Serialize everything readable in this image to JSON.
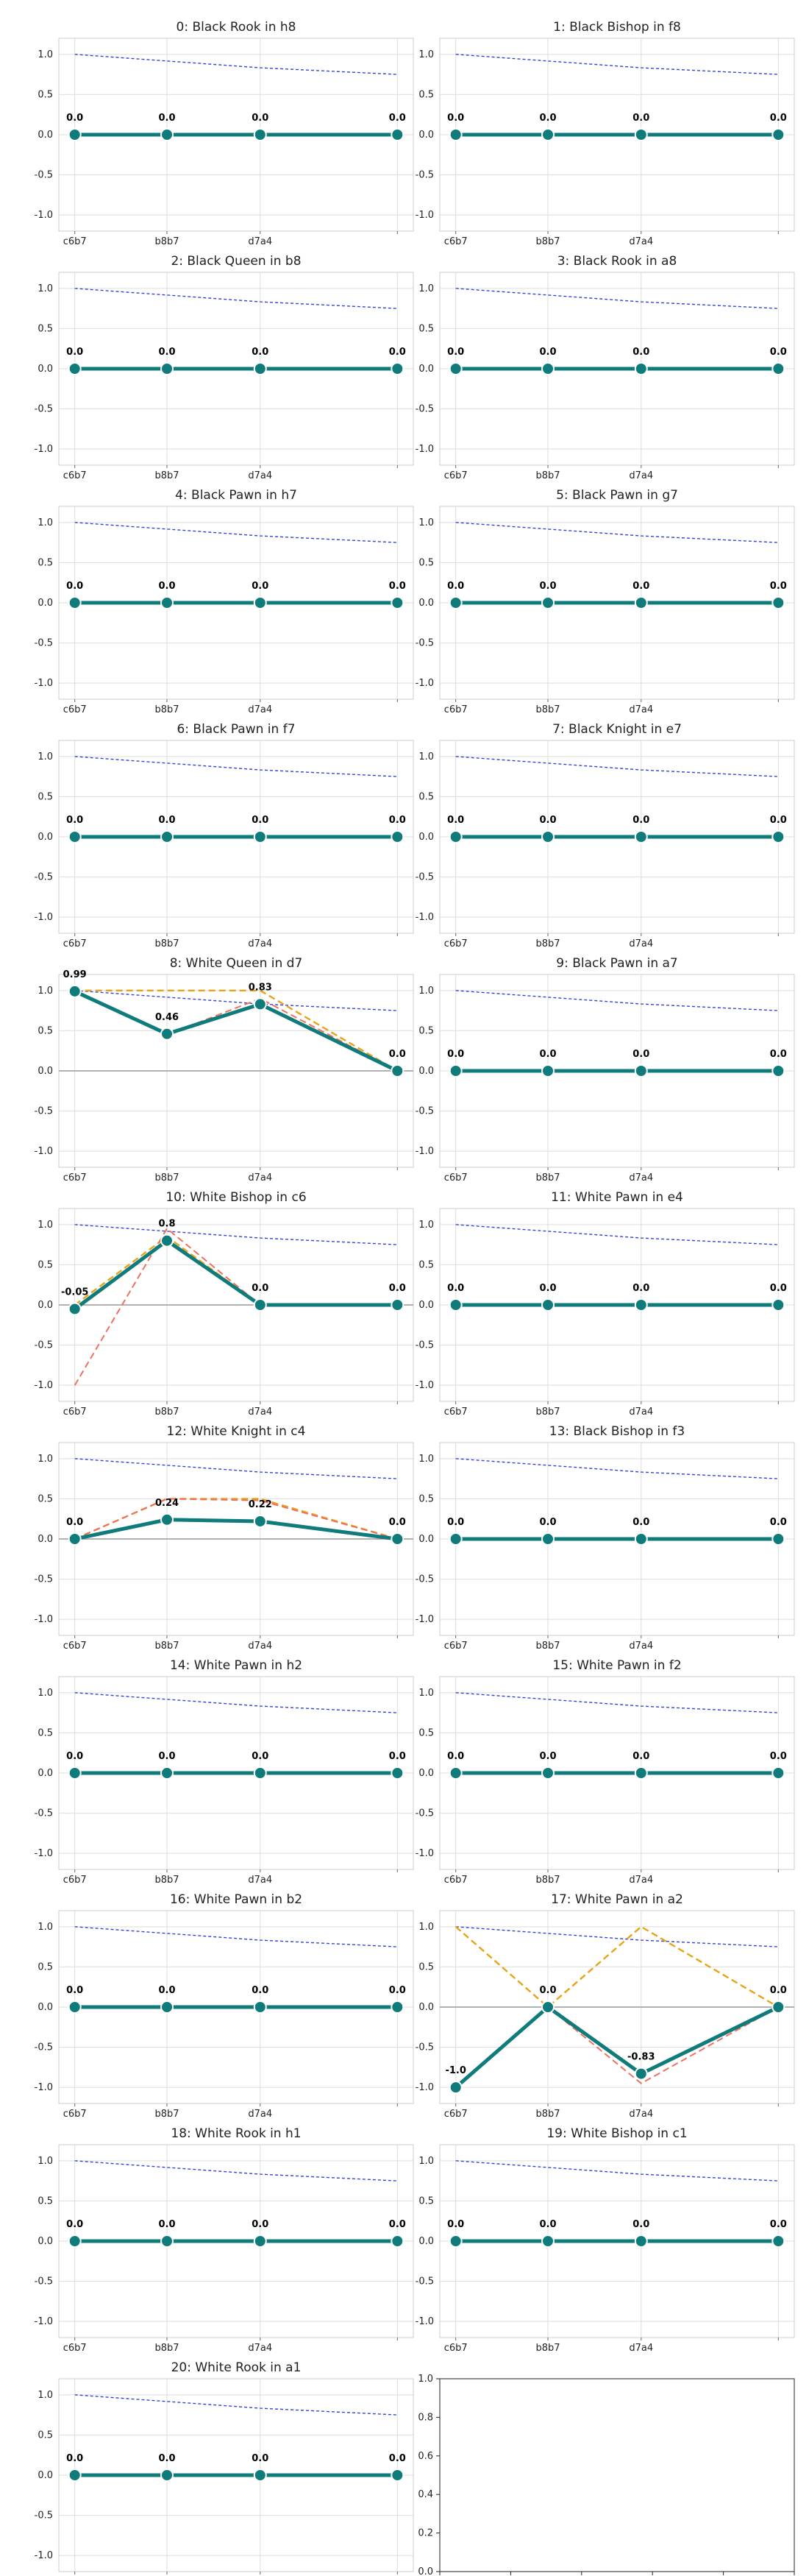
{
  "chart_data": [
    {
      "type": "line",
      "title": "0: Black Rook in h8",
      "categories": [
        "c6b7",
        "b8b7",
        "d7a4",
        ""
      ],
      "ylim": [
        -1.2,
        1.2
      ],
      "yticks": [
        "1.0",
        "0.5",
        "0.0",
        "-0.5",
        "-1.0"
      ],
      "grid": true,
      "series": [
        {
          "role": "trend",
          "values": [
            1.0,
            0.917,
            0.833,
            0.75
          ]
        },
        {
          "role": "main",
          "values": [
            0,
            0,
            0,
            0
          ],
          "labels": [
            "0.0",
            "0.0",
            "0.0",
            "0.0"
          ]
        }
      ]
    },
    {
      "type": "line",
      "title": "1: Black Bishop in f8",
      "categories": [
        "c6b7",
        "b8b7",
        "d7a4",
        ""
      ],
      "ylim": [
        -1.2,
        1.2
      ],
      "yticks": [
        "1.0",
        "0.5",
        "0.0",
        "-0.5",
        "-1.0"
      ],
      "grid": true,
      "series": [
        {
          "role": "trend",
          "values": [
            1.0,
            0.917,
            0.833,
            0.75
          ]
        },
        {
          "role": "main",
          "values": [
            0,
            0,
            0,
            0
          ],
          "labels": [
            "0.0",
            "0.0",
            "0.0",
            "0.0"
          ]
        }
      ]
    },
    {
      "type": "line",
      "title": "2: Black Queen in b8",
      "categories": [
        "c6b7",
        "b8b7",
        "d7a4",
        ""
      ],
      "ylim": [
        -1.2,
        1.2
      ],
      "yticks": [
        "1.0",
        "0.5",
        "0.0",
        "-0.5",
        "-1.0"
      ],
      "grid": true,
      "series": [
        {
          "role": "trend",
          "values": [
            1.0,
            0.917,
            0.833,
            0.75
          ]
        },
        {
          "role": "main",
          "values": [
            0,
            0,
            0,
            0
          ],
          "labels": [
            "0.0",
            "0.0",
            "0.0",
            "0.0"
          ]
        }
      ]
    },
    {
      "type": "line",
      "title": "3: Black Rook in a8",
      "categories": [
        "c6b7",
        "b8b7",
        "d7a4",
        ""
      ],
      "ylim": [
        -1.2,
        1.2
      ],
      "yticks": [
        "1.0",
        "0.5",
        "0.0",
        "-0.5",
        "-1.0"
      ],
      "grid": true,
      "series": [
        {
          "role": "trend",
          "values": [
            1.0,
            0.917,
            0.833,
            0.75
          ]
        },
        {
          "role": "main",
          "values": [
            0,
            0,
            0,
            0
          ],
          "labels": [
            "0.0",
            "0.0",
            "0.0",
            "0.0"
          ]
        }
      ]
    },
    {
      "type": "line",
      "title": "4: Black Pawn in h7",
      "categories": [
        "c6b7",
        "b8b7",
        "d7a4",
        ""
      ],
      "ylim": [
        -1.2,
        1.2
      ],
      "yticks": [
        "1.0",
        "0.5",
        "0.0",
        "-0.5",
        "-1.0"
      ],
      "grid": true,
      "series": [
        {
          "role": "trend",
          "values": [
            1.0,
            0.917,
            0.833,
            0.75
          ]
        },
        {
          "role": "main",
          "values": [
            0,
            0,
            0,
            0
          ],
          "labels": [
            "0.0",
            "0.0",
            "0.0",
            "0.0"
          ]
        }
      ]
    },
    {
      "type": "line",
      "title": "5: Black Pawn in g7",
      "categories": [
        "c6b7",
        "b8b7",
        "d7a4",
        ""
      ],
      "ylim": [
        -1.2,
        1.2
      ],
      "yticks": [
        "1.0",
        "0.5",
        "0.0",
        "-0.5",
        "-1.0"
      ],
      "grid": true,
      "series": [
        {
          "role": "trend",
          "values": [
            1.0,
            0.917,
            0.833,
            0.75
          ]
        },
        {
          "role": "main",
          "values": [
            0,
            0,
            0,
            0
          ],
          "labels": [
            "0.0",
            "0.0",
            "0.0",
            "0.0"
          ]
        }
      ]
    },
    {
      "type": "line",
      "title": "6: Black Pawn in f7",
      "categories": [
        "c6b7",
        "b8b7",
        "d7a4",
        ""
      ],
      "ylim": [
        -1.2,
        1.2
      ],
      "yticks": [
        "1.0",
        "0.5",
        "0.0",
        "-0.5",
        "-1.0"
      ],
      "grid": true,
      "series": [
        {
          "role": "trend",
          "values": [
            1.0,
            0.917,
            0.833,
            0.75
          ]
        },
        {
          "role": "main",
          "values": [
            0,
            0,
            0,
            0
          ],
          "labels": [
            "0.0",
            "0.0",
            "0.0",
            "0.0"
          ]
        }
      ]
    },
    {
      "type": "line",
      "title": "7: Black Knight in e7",
      "categories": [
        "c6b7",
        "b8b7",
        "d7a4",
        ""
      ],
      "ylim": [
        -1.2,
        1.2
      ],
      "yticks": [
        "1.0",
        "0.5",
        "0.0",
        "-0.5",
        "-1.0"
      ],
      "grid": true,
      "series": [
        {
          "role": "trend",
          "values": [
            1.0,
            0.917,
            0.833,
            0.75
          ]
        },
        {
          "role": "main",
          "values": [
            0,
            0,
            0,
            0
          ],
          "labels": [
            "0.0",
            "0.0",
            "0.0",
            "0.0"
          ]
        }
      ]
    },
    {
      "type": "line",
      "title": "8: White Queen in d7",
      "categories": [
        "c6b7",
        "b8b7",
        "d7a4",
        ""
      ],
      "ylim": [
        -1.2,
        1.2
      ],
      "yticks": [
        "1.0",
        "0.5",
        "0.0",
        "-0.5",
        "-1.0"
      ],
      "grid": true,
      "zero_line": true,
      "series": [
        {
          "role": "trend",
          "values": [
            1.0,
            0.917,
            0.833,
            0.75
          ]
        },
        {
          "role": "orange",
          "values": [
            1.0,
            1.0,
            1.0,
            0
          ]
        },
        {
          "role": "red",
          "values": [
            1.0,
            0.45,
            0.9,
            0
          ]
        },
        {
          "role": "main",
          "values": [
            0.99,
            0.46,
            0.83,
            0.0
          ],
          "labels": [
            "0.99",
            "0.46",
            "0.83",
            "0.0"
          ]
        }
      ]
    },
    {
      "type": "line",
      "title": "9: Black Pawn in a7",
      "categories": [
        "c6b7",
        "b8b7",
        "d7a4",
        ""
      ],
      "ylim": [
        -1.2,
        1.2
      ],
      "yticks": [
        "1.0",
        "0.5",
        "0.0",
        "-0.5",
        "-1.0"
      ],
      "grid": true,
      "series": [
        {
          "role": "trend",
          "values": [
            1.0,
            0.917,
            0.833,
            0.75
          ]
        },
        {
          "role": "main",
          "values": [
            0,
            0,
            0,
            0
          ],
          "labels": [
            "0.0",
            "0.0",
            "0.0",
            "0.0"
          ]
        }
      ]
    },
    {
      "type": "line",
      "title": "10: White Bishop in c6",
      "categories": [
        "c6b7",
        "b8b7",
        "d7a4",
        ""
      ],
      "ylim": [
        -1.2,
        1.2
      ],
      "yticks": [
        "1.0",
        "0.5",
        "0.0",
        "-0.5",
        "-1.0"
      ],
      "grid": true,
      "zero_line": true,
      "series": [
        {
          "role": "trend",
          "values": [
            1.0,
            0.917,
            0.833,
            0.75
          ]
        },
        {
          "role": "orange",
          "values": [
            0,
            0.85,
            0,
            0
          ]
        },
        {
          "role": "red",
          "values": [
            -1.0,
            0.95,
            0,
            0
          ]
        },
        {
          "role": "main",
          "values": [
            -0.05,
            0.8,
            0.0,
            0.0
          ],
          "labels": [
            "-0.05",
            "0.8",
            "0.0",
            "0.0"
          ]
        }
      ]
    },
    {
      "type": "line",
      "title": "11: White Pawn in e4",
      "categories": [
        "c6b7",
        "b8b7",
        "d7a4",
        ""
      ],
      "ylim": [
        -1.2,
        1.2
      ],
      "yticks": [
        "1.0",
        "0.5",
        "0.0",
        "-0.5",
        "-1.0"
      ],
      "grid": true,
      "series": [
        {
          "role": "trend",
          "values": [
            1.0,
            0.917,
            0.833,
            0.75
          ]
        },
        {
          "role": "main",
          "values": [
            0,
            0,
            0,
            0
          ],
          "labels": [
            "0.0",
            "0.0",
            "0.0",
            "0.0"
          ]
        }
      ]
    },
    {
      "type": "line",
      "title": "12: White Knight in c4",
      "categories": [
        "c6b7",
        "b8b7",
        "d7a4",
        ""
      ],
      "ylim": [
        -1.2,
        1.2
      ],
      "yticks": [
        "1.0",
        "0.5",
        "0.0",
        "-0.5",
        "-1.0"
      ],
      "grid": true,
      "zero_line": true,
      "series": [
        {
          "role": "trend",
          "values": [
            1.0,
            0.917,
            0.833,
            0.75
          ]
        },
        {
          "role": "orange",
          "values": [
            0,
            0.5,
            0.5,
            0
          ]
        },
        {
          "role": "red",
          "values": [
            0,
            0.5,
            0.48,
            0
          ]
        },
        {
          "role": "main",
          "values": [
            0.0,
            0.24,
            0.22,
            0.0
          ],
          "labels": [
            "0.0",
            "0.24",
            "0.22",
            "0.0"
          ]
        }
      ]
    },
    {
      "type": "line",
      "title": "13: Black Bishop in f3",
      "categories": [
        "c6b7",
        "b8b7",
        "d7a4",
        ""
      ],
      "ylim": [
        -1.2,
        1.2
      ],
      "yticks": [
        "1.0",
        "0.5",
        "0.0",
        "-0.5",
        "-1.0"
      ],
      "grid": true,
      "series": [
        {
          "role": "trend",
          "values": [
            1.0,
            0.917,
            0.833,
            0.75
          ]
        },
        {
          "role": "main",
          "values": [
            0,
            0,
            0,
            0
          ],
          "labels": [
            "0.0",
            "0.0",
            "0.0",
            "0.0"
          ]
        }
      ]
    },
    {
      "type": "line",
      "title": "14: White Pawn in h2",
      "categories": [
        "c6b7",
        "b8b7",
        "d7a4",
        ""
      ],
      "ylim": [
        -1.2,
        1.2
      ],
      "yticks": [
        "1.0",
        "0.5",
        "0.0",
        "-0.5",
        "-1.0"
      ],
      "grid": true,
      "series": [
        {
          "role": "trend",
          "values": [
            1.0,
            0.917,
            0.833,
            0.75
          ]
        },
        {
          "role": "main",
          "values": [
            0,
            0,
            0,
            0
          ],
          "labels": [
            "0.0",
            "0.0",
            "0.0",
            "0.0"
          ]
        }
      ]
    },
    {
      "type": "line",
      "title": "15: White Pawn in f2",
      "categories": [
        "c6b7",
        "b8b7",
        "d7a4",
        ""
      ],
      "ylim": [
        -1.2,
        1.2
      ],
      "yticks": [
        "1.0",
        "0.5",
        "0.0",
        "-0.5",
        "-1.0"
      ],
      "grid": true,
      "series": [
        {
          "role": "trend",
          "values": [
            1.0,
            0.917,
            0.833,
            0.75
          ]
        },
        {
          "role": "main",
          "values": [
            0,
            0,
            0,
            0
          ],
          "labels": [
            "0.0",
            "0.0",
            "0.0",
            "0.0"
          ]
        }
      ]
    },
    {
      "type": "line",
      "title": "16: White Pawn in b2",
      "categories": [
        "c6b7",
        "b8b7",
        "d7a4",
        ""
      ],
      "ylim": [
        -1.2,
        1.2
      ],
      "yticks": [
        "1.0",
        "0.5",
        "0.0",
        "-0.5",
        "-1.0"
      ],
      "grid": true,
      "series": [
        {
          "role": "trend",
          "values": [
            1.0,
            0.917,
            0.833,
            0.75
          ]
        },
        {
          "role": "main",
          "values": [
            0,
            0,
            0,
            0
          ],
          "labels": [
            "0.0",
            "0.0",
            "0.0",
            "0.0"
          ]
        }
      ]
    },
    {
      "type": "line",
      "title": "17: White Pawn in a2",
      "categories": [
        "c6b7",
        "b8b7",
        "d7a4",
        ""
      ],
      "ylim": [
        -1.2,
        1.2
      ],
      "yticks": [
        "1.0",
        "0.5",
        "0.0",
        "-0.5",
        "-1.0"
      ],
      "grid": true,
      "zero_line": true,
      "series": [
        {
          "role": "trend",
          "values": [
            1.0,
            0.917,
            0.833,
            0.75
          ]
        },
        {
          "role": "orange",
          "values": [
            1.0,
            0.0,
            1.0,
            0.0
          ]
        },
        {
          "role": "red",
          "values": [
            -1.0,
            0.0,
            -0.95,
            0.0
          ]
        },
        {
          "role": "main",
          "values": [
            -1.0,
            0.0,
            -0.83,
            0.0
          ],
          "labels": [
            "-1.0",
            "0.0",
            "-0.83",
            "0.0"
          ]
        }
      ]
    },
    {
      "type": "line",
      "title": "18: White Rook in h1",
      "categories": [
        "c6b7",
        "b8b7",
        "d7a4",
        ""
      ],
      "ylim": [
        -1.2,
        1.2
      ],
      "yticks": [
        "1.0",
        "0.5",
        "0.0",
        "-0.5",
        "-1.0"
      ],
      "grid": true,
      "series": [
        {
          "role": "trend",
          "values": [
            1.0,
            0.917,
            0.833,
            0.75
          ]
        },
        {
          "role": "main",
          "values": [
            0,
            0,
            0,
            0
          ],
          "labels": [
            "0.0",
            "0.0",
            "0.0",
            "0.0"
          ]
        }
      ]
    },
    {
      "type": "line",
      "title": "19: White Bishop in c1",
      "categories": [
        "c6b7",
        "b8b7",
        "d7a4",
        ""
      ],
      "ylim": [
        -1.2,
        1.2
      ],
      "yticks": [
        "1.0",
        "0.5",
        "0.0",
        "-0.5",
        "-1.0"
      ],
      "grid": true,
      "series": [
        {
          "role": "trend",
          "values": [
            1.0,
            0.917,
            0.833,
            0.75
          ]
        },
        {
          "role": "main",
          "values": [
            0,
            0,
            0,
            0
          ],
          "labels": [
            "0.0",
            "0.0",
            "0.0",
            "0.0"
          ]
        }
      ]
    },
    {
      "type": "line",
      "title": "20: White Rook in a1",
      "categories": [
        "c6b7",
        "b8b7",
        "d7a4",
        ""
      ],
      "ylim": [
        -1.2,
        1.2
      ],
      "yticks": [
        "1.0",
        "0.5",
        "0.0",
        "-0.5",
        "-1.0"
      ],
      "grid": true,
      "series": [
        {
          "role": "trend",
          "values": [
            1.0,
            0.917,
            0.833,
            0.75
          ]
        },
        {
          "role": "main",
          "values": [
            0,
            0,
            0,
            0
          ],
          "labels": [
            "0.0",
            "0.0",
            "0.0",
            "0.0"
          ]
        }
      ]
    },
    {
      "type": "empty",
      "title": "",
      "xlim": [
        0,
        1
      ],
      "ylim": [
        0,
        1
      ],
      "xticks": [
        "0.0",
        "0.2",
        "0.4",
        "0.6",
        "0.8",
        "1.0"
      ],
      "yticks": [
        "0.0",
        "0.2",
        "0.4",
        "0.6",
        "0.8",
        "1.0"
      ]
    }
  ],
  "colors": {
    "main": "#0f7b7b",
    "trend": "#3344dd",
    "orange": "#e8a317",
    "red": "#f07060",
    "grid": "#dddddd",
    "zero": "#999999",
    "spine": "#cccccc",
    "frame": "#222222"
  }
}
